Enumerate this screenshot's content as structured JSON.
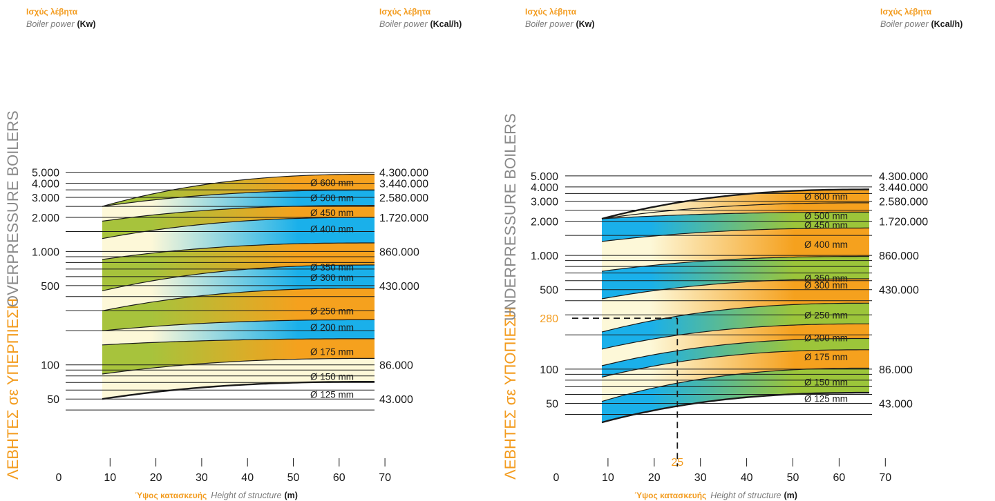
{
  "headers": {
    "greek_power": "Ισχύς λέβητα",
    "english_power": "Boiler power",
    "unit_kw": "(Kw)",
    "unit_kcal": "(Kcal/h)",
    "greek_height": "Ύψος κατασκευής",
    "english_height": "Height of structure",
    "unit_m": "(m)"
  },
  "colors": {
    "orange": "#f5a11e",
    "blue": "#1ab0ea",
    "green": "#9cc53a",
    "cream": "#fdf7d4",
    "accent_text": "#f39c1f"
  },
  "chart_data": [
    {
      "type": "area",
      "side_label_gr": "ΛΕΒΗΤΕΣ σε ΥΠΕΡΠΙΕΣΗ",
      "side_label_en": "OVERPRESSURE BOILERS",
      "xlabel": "Ύψος κατασκευής Height of structure (m)",
      "ylabel": "Boiler power (Kw)",
      "y2label": "Boiler power (Kcal/h)",
      "x_ticks": [
        "0",
        "10",
        "20",
        "30",
        "40",
        "50",
        "60",
        "70"
      ],
      "xlim": [
        8.5,
        67.5
      ],
      "ylim": [
        30,
        5000
      ],
      "yscale": "log",
      "y_labels": [
        {
          "kw": 5000,
          "label": "5.000"
        },
        {
          "kw": 4000,
          "label": "4.000"
        },
        {
          "kw": 3000,
          "label": "3.000"
        },
        {
          "kw": 2000,
          "label": "2.000"
        },
        {
          "kw": 1000,
          "label": "1.000"
        },
        {
          "kw": 500,
          "label": "500"
        },
        {
          "kw": 100,
          "label": "100"
        },
        {
          "kw": 50,
          "label": "50"
        }
      ],
      "y2_labels": [
        {
          "kw": 5000,
          "label": "4.300.000"
        },
        {
          "kw": 4000,
          "label": "3.440.000"
        },
        {
          "kw": 3000,
          "label": "2.580.000"
        },
        {
          "kw": 2000,
          "label": "1.720.000"
        },
        {
          "kw": 1000,
          "label": "860.000"
        },
        {
          "kw": 500,
          "label": "430.000"
        },
        {
          "kw": 100,
          "label": "86.000"
        },
        {
          "kw": 50,
          "label": "43.000"
        }
      ],
      "grid_kw": [
        5000,
        4000,
        3500,
        3000,
        2500,
        2000,
        1500,
        1000,
        900,
        800,
        700,
        600,
        500,
        400,
        300,
        200,
        100,
        90,
        80,
        70,
        60,
        50,
        40
      ],
      "boundaries": [
        {
          "start": 50,
          "end": 71
        },
        {
          "start": 83,
          "end": 114
        },
        {
          "start": 150,
          "end": 170
        },
        {
          "start": 200,
          "end": 250
        },
        {
          "start": 300,
          "end": 475
        },
        {
          "start": 450,
          "end": 760
        },
        {
          "start": 850,
          "end": 1190
        },
        {
          "start": 1300,
          "end": 2000
        },
        {
          "start": 1850,
          "end": 2550
        },
        {
          "start": 2500,
          "end": 3480
        },
        {
          "start": 2500,
          "end": 4800
        }
      ],
      "bands": [
        {
          "label": "Ø 125 mm",
          "colors": [
            "#fdf8d8",
            "#fdf8d8"
          ]
        },
        {
          "label": "Ø 150 mm",
          "colors": [
            "#a7c33c",
            "#f5a11e"
          ]
        },
        {
          "label": "Ø 175 mm",
          "colors": [
            "#fdf8d8",
            "#1ab0ea"
          ]
        },
        {
          "label": "Ø 200 mm",
          "colors": [
            "#a7c33c",
            "#f5a11e"
          ]
        },
        {
          "label": "Ø 250 mm",
          "colors": [
            "#fdf8d8",
            "#1ab0ea"
          ]
        },
        {
          "label": "Ø 300 mm",
          "colors": [
            "#a7c33c",
            "#f5a11e"
          ]
        },
        {
          "label": "Ø 350 mm",
          "colors": [
            "#fdf8d8",
            "#1ab0ea"
          ]
        },
        {
          "label": "Ø 400 mm",
          "colors": [
            "#a7c33c",
            "#f5a11e"
          ]
        },
        {
          "label": "Ø 450 mm",
          "colors": [
            "#fdf8d8",
            "#1ab0ea"
          ]
        },
        {
          "label": "Ø 500 mm",
          "colors": [
            "#a7c33c",
            "#f5a11e"
          ]
        },
        {
          "label": "Ø 600 mm",
          "colors": [
            "#fdf8d8",
            "#1ab0ea"
          ]
        }
      ],
      "label_kw": [
        55,
        79,
        131,
        215,
        300,
        590,
        730,
        1590,
        2200,
        2980,
        4050
      ]
    },
    {
      "type": "area",
      "side_label_gr": "ΛΕΒΗΤΕΣ σε ΥΠΟΠΙΕΣΗ",
      "side_label_en": "UNDERPRESSURE BOILERS",
      "xlabel": "Ύψος κατασκευής Height of structure (m)",
      "ylabel": "Boiler power (Kw)",
      "y2label": "Boiler power (Kcal/h)",
      "x_ticks": [
        "0",
        "10",
        "20",
        "30",
        "40",
        "50",
        "60",
        "70"
      ],
      "xlim": [
        8.5,
        67
      ],
      "ylim": [
        30,
        5000
      ],
      "yscale": "log",
      "y_labels": [
        {
          "kw": 5000,
          "label": "5.000"
        },
        {
          "kw": 4000,
          "label": "4.000"
        },
        {
          "kw": 3000,
          "label": "3.000"
        },
        {
          "kw": 2000,
          "label": "2.000"
        },
        {
          "kw": 1000,
          "label": "1.000"
        },
        {
          "kw": 500,
          "label": "500"
        },
        {
          "kw": 100,
          "label": "100"
        },
        {
          "kw": 50,
          "label": "50"
        }
      ],
      "y2_labels": [
        {
          "kw": 5000,
          "label": "4.300.000"
        },
        {
          "kw": 4000,
          "label": "3.440.000"
        },
        {
          "kw": 3000,
          "label": "2.580.000"
        },
        {
          "kw": 2000,
          "label": "1.720.000"
        },
        {
          "kw": 1000,
          "label": "860.000"
        },
        {
          "kw": 500,
          "label": "430.000"
        },
        {
          "kw": 100,
          "label": "86.000"
        },
        {
          "kw": 50,
          "label": "43.000"
        }
      ],
      "grid_kw": [
        5000,
        4000,
        3500,
        3000,
        2500,
        2000,
        1500,
        1000,
        900,
        800,
        700,
        600,
        500,
        400,
        300,
        200,
        100,
        90,
        80,
        70,
        60,
        50,
        40
      ],
      "boundaries": [
        {
          "start": 34,
          "end": 62
        },
        {
          "start": 52,
          "end": 102
        },
        {
          "start": 85,
          "end": 148
        },
        {
          "start": 107,
          "end": 186
        },
        {
          "start": 150,
          "end": 250
        },
        {
          "start": 212,
          "end": 380
        },
        {
          "start": 415,
          "end": 623
        },
        {
          "start": 725,
          "end": 980
        },
        {
          "start": 1325,
          "end": 1740
        },
        {
          "start": 2100,
          "end": 2400
        },
        {
          "start": 2100,
          "end": 2900
        },
        {
          "start": 2100,
          "end": 3800
        }
      ],
      "bands": [
        {
          "label": "Ø 125 mm",
          "colors": [
            "#1ab0ea",
            "#9cc53a"
          ]
        },
        {
          "label": "Ø 150 mm",
          "colors": [
            "#fdf8d8",
            "#f5a11e"
          ]
        },
        {
          "label": "Ø 175 mm",
          "colors": [
            "#1ab0ea",
            "#9cc53a"
          ]
        },
        {
          "label": "Ø 200 mm",
          "colors": [
            "#fdf8d8",
            "#f5a11e"
          ]
        },
        {
          "label": "Ø 250 mm",
          "colors": [
            "#1ab0ea",
            "#9cc53a"
          ]
        },
        {
          "label": "Ø 300 mm",
          "colors": [
            "#fdf8d8",
            "#f5a11e"
          ]
        },
        {
          "label": "Ø 350 mm",
          "colors": [
            "#1ab0ea",
            "#9cc53a"
          ]
        },
        {
          "label": "Ø 400 mm",
          "colors": [
            "#fdf8d8",
            "#f5a11e"
          ]
        },
        {
          "label": "Ø 450 mm",
          "colors": [
            "#1ab0ea",
            "#9cc53a"
          ]
        },
        {
          "label": "Ø 500 mm",
          "colors": [
            "#fdf8d8",
            "#f5a11e"
          ]
        },
        {
          "label": "Ø 600 mm",
          "colors": [
            "#fdf8d8",
            "#f5a11e"
          ]
        }
      ],
      "label_kw": [
        55,
        77,
        128,
        188,
        300,
        550,
        630,
        1250,
        1850,
        2240,
        3300
      ],
      "example": {
        "x": 25,
        "kw": 280,
        "x_label": "25",
        "kw_label": "280"
      }
    }
  ]
}
